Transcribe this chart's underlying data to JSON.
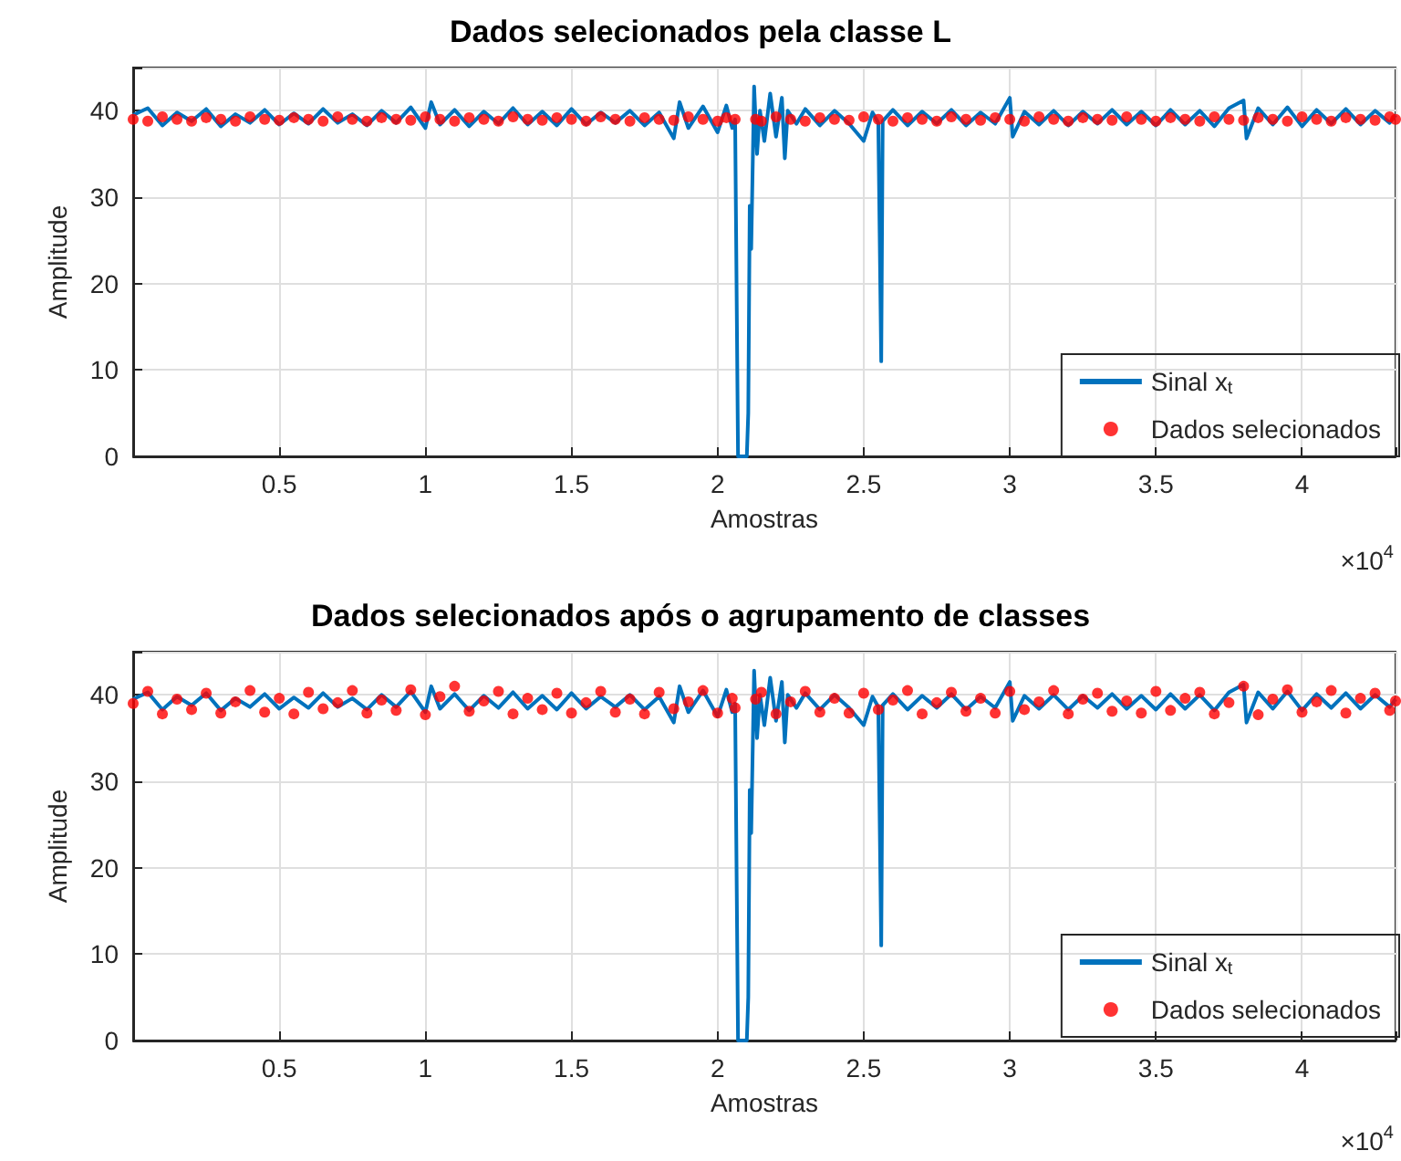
{
  "chart_data": [
    {
      "type": "line",
      "title": "Dados selecionados pela classe L",
      "xlabel": "Amostras",
      "ylabel": "Amplitude",
      "annotations": [
        "×10$^{4}$"
      ],
      "xlim": [
        0,
        4.32
      ],
      "xticks": [
        0.5,
        1,
        1.5,
        2,
        2.5,
        3,
        3.5,
        4
      ],
      "ylim": [
        0,
        45
      ],
      "yticks": [
        0,
        10,
        20,
        30,
        40
      ],
      "grid": true,
      "legend": "bottom right",
      "series": [
        {
          "name": "Sinal x$_{t}$",
          "type": "line",
          "marker": "none",
          "color": "#0072bd",
          "x": [
            0,
            0.05,
            0.1,
            0.15,
            0.2,
            0.25,
            0.3,
            0.35,
            0.4,
            0.45,
            0.5,
            0.55,
            0.6,
            0.65,
            0.7,
            0.75,
            0.8,
            0.85,
            0.9,
            0.95,
            1.0,
            1.02,
            1.05,
            1.1,
            1.15,
            1.2,
            1.25,
            1.3,
            1.35,
            1.4,
            1.45,
            1.5,
            1.55,
            1.6,
            1.65,
            1.7,
            1.75,
            1.8,
            1.85,
            1.87,
            1.9,
            1.95,
            2.0,
            2.03,
            2.05,
            2.06,
            2.07,
            2.09,
            2.1,
            2.105,
            2.11,
            2.115,
            2.125,
            2.135,
            2.145,
            2.16,
            2.18,
            2.2,
            2.22,
            2.23,
            2.24,
            2.27,
            2.3,
            2.35,
            2.4,
            2.45,
            2.5,
            2.53,
            2.55,
            2.56,
            2.565,
            2.6,
            2.65,
            2.7,
            2.75,
            2.8,
            2.85,
            2.9,
            2.95,
            3.0,
            3.01,
            3.05,
            3.1,
            3.15,
            3.2,
            3.25,
            3.3,
            3.35,
            3.4,
            3.45,
            3.5,
            3.55,
            3.6,
            3.65,
            3.7,
            3.75,
            3.8,
            3.81,
            3.85,
            3.9,
            3.95,
            4.0,
            4.05,
            4.1,
            4.15,
            4.2,
            4.25,
            4.3,
            4.32
          ],
          "values": [
            39.5,
            40.3,
            38.3,
            39.8,
            38.8,
            40.2,
            38.2,
            39.6,
            38.6,
            40.1,
            38.4,
            39.7,
            38.5,
            40.2,
            38.6,
            39.6,
            38.3,
            40.0,
            38.6,
            40.4,
            38.0,
            41.0,
            38.4,
            40.1,
            38.2,
            39.9,
            38.5,
            40.3,
            38.4,
            39.9,
            38.3,
            40.2,
            38.4,
            39.8,
            38.6,
            40.0,
            38.3,
            39.8,
            36.8,
            41.0,
            38.0,
            40.5,
            37.5,
            40.6,
            38.0,
            39.0,
            0,
            0,
            0,
            5,
            29,
            24,
            42.8,
            35,
            40,
            36.5,
            42,
            37,
            41.5,
            34.5,
            40,
            38.5,
            40.2,
            38.3,
            40.0,
            38.5,
            36.5,
            39.8,
            38.6,
            11,
            38.8,
            40.1,
            38.3,
            39.9,
            38.5,
            40.1,
            38.3,
            39.8,
            38.5,
            41.5,
            37,
            39.9,
            38.4,
            40.0,
            38.3,
            39.9,
            38.5,
            40.1,
            38.4,
            39.9,
            38.3,
            40.1,
            38.4,
            40.0,
            38.2,
            40.3,
            41.2,
            36.8,
            40.3,
            38.4,
            40.4,
            38.2,
            40.1,
            38.5,
            40.2,
            38.4,
            40.0,
            38.6,
            39.5
          ]
        },
        {
          "name": "Dados selecionados",
          "type": "scatter",
          "marker": "circle",
          "color": "#ff0000",
          "x": [
            0,
            0.05,
            0.1,
            0.15,
            0.2,
            0.25,
            0.3,
            0.35,
            0.4,
            0.45,
            0.5,
            0.55,
            0.6,
            0.65,
            0.7,
            0.75,
            0.8,
            0.85,
            0.9,
            0.95,
            1.0,
            1.05,
            1.1,
            1.15,
            1.2,
            1.25,
            1.3,
            1.35,
            1.4,
            1.45,
            1.5,
            1.55,
            1.6,
            1.65,
            1.7,
            1.75,
            1.8,
            1.85,
            1.9,
            1.95,
            2.0,
            2.03,
            2.06,
            2.13,
            2.15,
            2.2,
            2.25,
            2.3,
            2.35,
            2.4,
            2.45,
            2.5,
            2.55,
            2.6,
            2.65,
            2.7,
            2.75,
            2.8,
            2.85,
            2.9,
            2.95,
            3.0,
            3.05,
            3.1,
            3.15,
            3.2,
            3.25,
            3.3,
            3.35,
            3.4,
            3.45,
            3.5,
            3.55,
            3.6,
            3.65,
            3.7,
            3.75,
            3.8,
            3.85,
            3.9,
            3.95,
            4.0,
            4.05,
            4.1,
            4.15,
            4.2,
            4.25,
            4.3,
            4.32
          ],
          "values": [
            39.0,
            38.8,
            39.3,
            39.0,
            38.8,
            39.2,
            39.0,
            38.8,
            39.3,
            39.0,
            38.9,
            39.2,
            39.0,
            38.8,
            39.3,
            39.0,
            38.8,
            39.2,
            39.0,
            38.9,
            39.3,
            39.0,
            38.8,
            39.2,
            39.0,
            38.8,
            39.3,
            39.0,
            38.9,
            39.2,
            39.0,
            38.8,
            39.3,
            39.0,
            38.8,
            39.2,
            39.0,
            38.9,
            39.3,
            39.0,
            38.8,
            39.2,
            39.0,
            39.0,
            38.8,
            39.3,
            39.0,
            38.8,
            39.2,
            39.0,
            38.9,
            39.3,
            39.0,
            38.8,
            39.2,
            39.0,
            38.8,
            39.3,
            39.0,
            38.9,
            39.2,
            39.0,
            38.8,
            39.3,
            39.0,
            38.8,
            39.2,
            39.0,
            38.9,
            39.3,
            39.0,
            38.8,
            39.2,
            39.0,
            38.8,
            39.3,
            39.0,
            38.9,
            39.2,
            39.0,
            38.8,
            39.3,
            39.0,
            38.8,
            39.2,
            39.0,
            38.9,
            39.3,
            39.0
          ]
        }
      ]
    },
    {
      "type": "line",
      "title": "Dados selecionados após o agrupamento de classes",
      "xlabel": "Amostras",
      "ylabel": "Amplitude",
      "annotations": [
        "×10$^{4}$"
      ],
      "xlim": [
        0,
        4.32
      ],
      "xticks": [
        0.5,
        1,
        1.5,
        2,
        2.5,
        3,
        3.5,
        4
      ],
      "ylim": [
        0,
        45
      ],
      "yticks": [
        0,
        10,
        20,
        30,
        40
      ],
      "grid": true,
      "legend": "bottom right",
      "series": [
        {
          "name": "Sinal x$_{t}$",
          "type": "line",
          "marker": "none",
          "color": "#0072bd",
          "x": [
            0,
            0.05,
            0.1,
            0.15,
            0.2,
            0.25,
            0.3,
            0.35,
            0.4,
            0.45,
            0.5,
            0.55,
            0.6,
            0.65,
            0.7,
            0.75,
            0.8,
            0.85,
            0.9,
            0.95,
            1.0,
            1.02,
            1.05,
            1.1,
            1.15,
            1.2,
            1.25,
            1.3,
            1.35,
            1.4,
            1.45,
            1.5,
            1.55,
            1.6,
            1.65,
            1.7,
            1.75,
            1.8,
            1.85,
            1.87,
            1.9,
            1.95,
            2.0,
            2.03,
            2.05,
            2.06,
            2.07,
            2.09,
            2.1,
            2.105,
            2.11,
            2.115,
            2.125,
            2.135,
            2.145,
            2.16,
            2.18,
            2.2,
            2.22,
            2.23,
            2.24,
            2.27,
            2.3,
            2.35,
            2.4,
            2.45,
            2.5,
            2.53,
            2.55,
            2.56,
            2.565,
            2.6,
            2.65,
            2.7,
            2.75,
            2.8,
            2.85,
            2.9,
            2.95,
            3.0,
            3.01,
            3.05,
            3.1,
            3.15,
            3.2,
            3.25,
            3.3,
            3.35,
            3.4,
            3.45,
            3.5,
            3.55,
            3.6,
            3.65,
            3.7,
            3.75,
            3.8,
            3.81,
            3.85,
            3.9,
            3.95,
            4.0,
            4.05,
            4.1,
            4.15,
            4.2,
            4.25,
            4.3,
            4.32
          ],
          "values": [
            39.5,
            40.3,
            38.3,
            39.8,
            38.8,
            40.2,
            38.2,
            39.6,
            38.6,
            40.1,
            38.4,
            39.7,
            38.5,
            40.2,
            38.6,
            39.6,
            38.3,
            40.0,
            38.6,
            40.4,
            38.0,
            41.0,
            38.4,
            40.1,
            38.2,
            39.9,
            38.5,
            40.3,
            38.4,
            39.9,
            38.3,
            40.2,
            38.4,
            39.8,
            38.6,
            40.0,
            38.3,
            39.8,
            36.8,
            41.0,
            38.0,
            40.5,
            37.5,
            40.6,
            38.0,
            39.0,
            0,
            0,
            0,
            5,
            29,
            24,
            42.8,
            35,
            40,
            36.5,
            42,
            37,
            41.5,
            34.5,
            40,
            38.5,
            40.2,
            38.3,
            40.0,
            38.5,
            36.5,
            39.8,
            38.6,
            11,
            38.8,
            40.1,
            38.3,
            39.9,
            38.5,
            40.1,
            38.3,
            39.8,
            38.5,
            41.5,
            37,
            39.9,
            38.4,
            40.0,
            38.3,
            39.9,
            38.5,
            40.1,
            38.4,
            39.9,
            38.3,
            40.1,
            38.4,
            40.0,
            38.2,
            40.3,
            41.2,
            36.8,
            40.3,
            38.4,
            40.4,
            38.2,
            40.1,
            38.5,
            40.2,
            38.4,
            40.0,
            38.6,
            39.5
          ]
        },
        {
          "name": "Dados selecionados",
          "type": "scatter",
          "marker": "circle",
          "color": "#ff0000",
          "x": [
            0,
            0.05,
            0.1,
            0.15,
            0.2,
            0.25,
            0.3,
            0.35,
            0.4,
            0.45,
            0.5,
            0.55,
            0.6,
            0.65,
            0.7,
            0.75,
            0.8,
            0.85,
            0.9,
            0.95,
            1.0,
            1.05,
            1.1,
            1.15,
            1.2,
            1.25,
            1.3,
            1.35,
            1.4,
            1.45,
            1.5,
            1.55,
            1.6,
            1.65,
            1.7,
            1.75,
            1.8,
            1.85,
            1.9,
            1.95,
            2.0,
            2.05,
            2.06,
            2.13,
            2.15,
            2.2,
            2.25,
            2.3,
            2.35,
            2.4,
            2.45,
            2.5,
            2.55,
            2.6,
            2.65,
            2.7,
            2.75,
            2.8,
            2.85,
            2.9,
            2.95,
            3.0,
            3.05,
            3.1,
            3.15,
            3.2,
            3.25,
            3.3,
            3.35,
            3.4,
            3.45,
            3.5,
            3.55,
            3.6,
            3.65,
            3.7,
            3.75,
            3.8,
            3.85,
            3.9,
            3.95,
            4.0,
            4.05,
            4.1,
            4.15,
            4.2,
            4.25,
            4.3,
            4.32
          ],
          "values": [
            39.0,
            40.4,
            37.8,
            39.5,
            38.3,
            40.2,
            37.9,
            39.2,
            40.5,
            38.0,
            39.6,
            37.8,
            40.3,
            38.4,
            39.1,
            40.5,
            37.9,
            39.4,
            38.2,
            40.6,
            37.7,
            39.8,
            41.0,
            38.1,
            39.3,
            40.4,
            37.8,
            39.6,
            38.3,
            40.2,
            37.9,
            39.1,
            40.4,
            38.0,
            39.5,
            37.8,
            40.3,
            38.4,
            39.2,
            40.5,
            37.9,
            39.6,
            38.5,
            39.5,
            40.3,
            37.8,
            39.2,
            40.4,
            38.0,
            39.6,
            37.9,
            40.2,
            38.3,
            39.4,
            40.5,
            37.8,
            39.1,
            40.3,
            38.1,
            39.6,
            37.9,
            40.4,
            38.3,
            39.2,
            40.5,
            37.8,
            39.5,
            40.2,
            38.1,
            39.3,
            37.9,
            40.4,
            38.2,
            39.6,
            40.3,
            37.8,
            39.1,
            41.0,
            37.7,
            39.5,
            40.6,
            38.0,
            39.2,
            40.5,
            37.9,
            39.6,
            40.2,
            38.2,
            39.3
          ]
        }
      ]
    }
  ]
}
